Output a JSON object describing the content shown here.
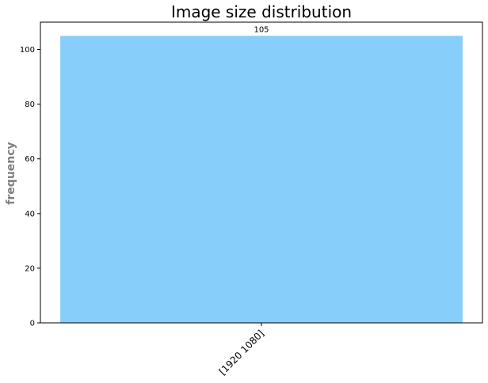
{
  "chart_data": {
    "type": "bar",
    "title": "Image size distribution",
    "xlabel": "",
    "ylabel": "frequency",
    "categories": [
      "[1920 1080]"
    ],
    "values": [
      105
    ],
    "data_labels": [
      "105"
    ],
    "ylim": [
      0,
      110
    ],
    "yticks": [
      0,
      20,
      40,
      60,
      80,
      100
    ],
    "ytick_labels": [
      "0",
      "20",
      "40",
      "60",
      "80",
      "100"
    ],
    "xtick_rotation_deg": 45,
    "grid": false,
    "legend": "none",
    "bar_color": "#87CEFA",
    "ylabel_color": "#808080",
    "axis_color": "#000000"
  }
}
